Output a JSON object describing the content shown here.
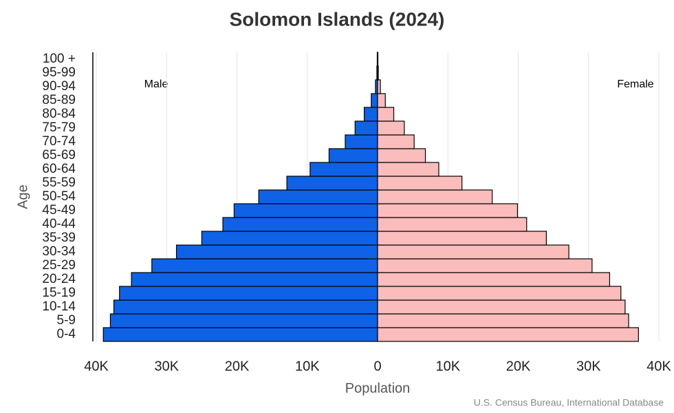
{
  "chart_data": {
    "type": "pyramid",
    "title": "Solomon Islands (2024)",
    "x_label": "Population",
    "y_label": "Age",
    "source": "U.S. Census Bureau, International Database",
    "categories": [
      "0-4",
      "5-9",
      "10-14",
      "15-19",
      "20-24",
      "25-29",
      "30-34",
      "35-39",
      "40-44",
      "45-49",
      "50-54",
      "55-59",
      "60-64",
      "65-69",
      "70-74",
      "75-79",
      "80-84",
      "85-89",
      "90-94",
      "95-99",
      "100 +"
    ],
    "series": [
      {
        "name": "Male",
        "color": "#0f62e6",
        "side": "left",
        "values": [
          39000,
          38000,
          37500,
          36700,
          35000,
          32100,
          28600,
          25000,
          22000,
          20400,
          16900,
          12900,
          9600,
          6900,
          4600,
          3200,
          1900,
          900,
          300,
          100,
          50
        ]
      },
      {
        "name": "Female",
        "color": "#fbbcbc",
        "side": "right",
        "values": [
          37100,
          35700,
          35200,
          34600,
          33000,
          30500,
          27200,
          24000,
          21200,
          19900,
          16300,
          12000,
          8700,
          6800,
          5200,
          3800,
          2300,
          1100,
          400,
          100,
          50
        ]
      }
    ],
    "xlim": [
      -40000,
      40000
    ],
    "xticks": [
      {
        "value": -40000,
        "label": "40K"
      },
      {
        "value": -30000,
        "label": "30K"
      },
      {
        "value": -20000,
        "label": "20K"
      },
      {
        "value": -10000,
        "label": "10K"
      },
      0,
      {
        "value": 10000,
        "label": "10K"
      },
      {
        "value": 20000,
        "label": "20K"
      },
      {
        "value": 30000,
        "label": "30K"
      },
      {
        "value": 40000,
        "label": "40K"
      }
    ],
    "grid": true
  }
}
